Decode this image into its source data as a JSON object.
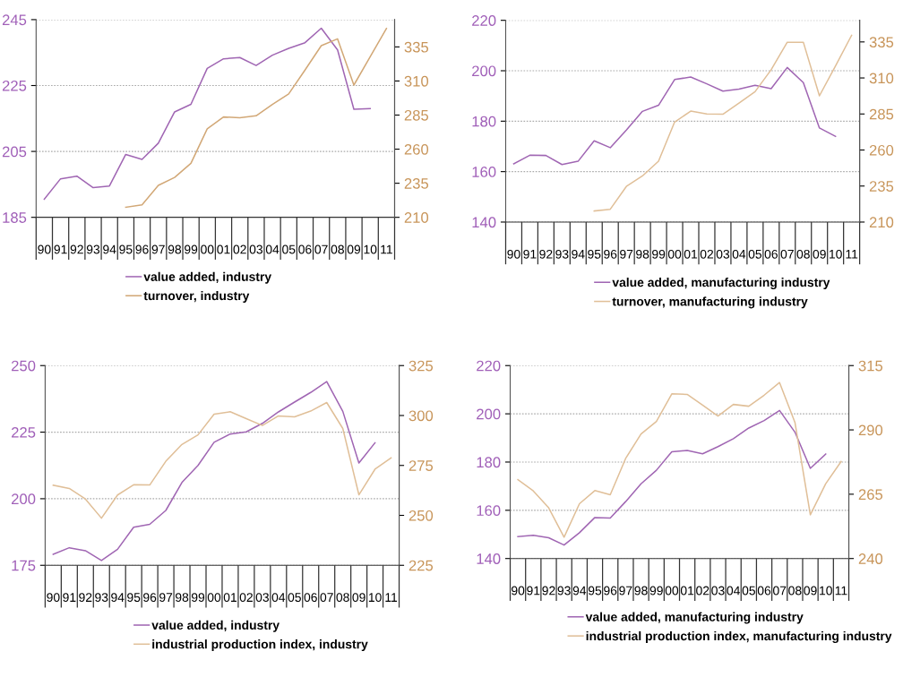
{
  "chart_data": [
    {
      "type": "line",
      "categories": [
        "90",
        "91",
        "92",
        "93",
        "94",
        "95",
        "96",
        "97",
        "98",
        "99",
        "00",
        "01",
        "02",
        "03",
        "04",
        "05",
        "06",
        "07",
        "08",
        "09",
        "10",
        "11"
      ],
      "ylim": [
        185,
        245
      ],
      "yticks": [
        185,
        205,
        225,
        245
      ],
      "y2lim": [
        210,
        355
      ],
      "y2ticks": [
        210,
        235,
        260,
        285,
        310,
        335
      ],
      "grid": "y",
      "legend": "bottom",
      "series": [
        {
          "name": "value added, industry",
          "color": "#a066b3",
          "values": [
            190.5,
            196.7,
            197.5,
            194.0,
            194.5,
            204.1,
            202.6,
            207.5,
            217.0,
            219.3,
            230.2,
            233.1,
            233.5,
            231.1,
            234.2,
            236.3,
            238.0,
            242.4,
            235.8,
            217.8,
            218.0,
            null
          ]
        },
        {
          "name": "turnover, industry",
          "color": "#d2a877",
          "axis": "y2",
          "values": [
            null,
            null,
            null,
            null,
            null,
            217.4,
            219.2,
            233.4,
            239.3,
            249.6,
            274.9,
            283.6,
            283.0,
            284.5,
            292.8,
            300.5,
            318.0,
            335.9,
            340.9,
            307.0,
            327.8,
            348.5
          ]
        }
      ]
    },
    {
      "type": "line",
      "categories": [
        "90",
        "91",
        "92",
        "93",
        "94",
        "95",
        "96",
        "97",
        "98",
        "99",
        "00",
        "01",
        "02",
        "03",
        "04",
        "05",
        "06",
        "07",
        "08",
        "09",
        "10",
        "11"
      ],
      "ylim": [
        140,
        220
      ],
      "yticks": [
        140,
        160,
        180,
        200,
        220
      ],
      "y2lim": [
        210,
        350
      ],
      "y2ticks": [
        210,
        235,
        260,
        285,
        310,
        335
      ],
      "grid": "y",
      "legend": "bottom",
      "series": [
        {
          "name": "value added, manufacturing industry",
          "color": "#a066b3",
          "values": [
            163.1,
            166.5,
            166.4,
            162.8,
            164.1,
            172.2,
            169.5,
            176.5,
            183.9,
            186.3,
            196.5,
            197.5,
            194.8,
            191.9,
            192.7,
            194.2,
            192.9,
            201.3,
            195.3,
            177.3,
            174.0,
            null
          ]
        },
        {
          "name": "turnover, manufacturing industry",
          "color": "#e0bf98",
          "axis": "y2",
          "values": [
            null,
            null,
            null,
            null,
            null,
            217.7,
            218.9,
            234.7,
            242.0,
            252.2,
            279.4,
            287.0,
            285.0,
            284.8,
            292.6,
            300.5,
            315.7,
            334.8,
            334.8,
            297.6,
            318.4,
            339.6
          ]
        }
      ]
    },
    {
      "type": "line",
      "categories": [
        "90",
        "91",
        "92",
        "93",
        "94",
        "95",
        "96",
        "97",
        "98",
        "99",
        "00",
        "01",
        "02",
        "03",
        "04",
        "05",
        "06",
        "07",
        "08",
        "09",
        "10",
        "11"
      ],
      "ylim": [
        175,
        250
      ],
      "yticks": [
        175,
        200,
        225,
        250
      ],
      "y2lim": [
        225,
        325
      ],
      "y2ticks": [
        225,
        250,
        275,
        300,
        325
      ],
      "grid": "y",
      "legend": "bottom",
      "series": [
        {
          "name": "value added, industry",
          "color": "#a066b3",
          "values": [
            179.1,
            181.6,
            180.5,
            176.8,
            181.0,
            189.3,
            190.4,
            195.6,
            206.1,
            212.5,
            221.2,
            224.3,
            225.1,
            228.3,
            232.6,
            236.3,
            239.9,
            244.0,
            232.8,
            213.4,
            221.0,
            null
          ]
        },
        {
          "name": "industrial production index, industry",
          "color": "#e0bf98",
          "axis": "y2",
          "values": [
            265.1,
            263.5,
            258.2,
            248.6,
            260.2,
            265.3,
            265.2,
            277.1,
            285.5,
            290.3,
            300.7,
            301.9,
            298.4,
            295.0,
            299.8,
            299.3,
            302.2,
            306.5,
            293.5,
            260.3,
            273.1,
            278.8
          ]
        }
      ]
    },
    {
      "type": "line",
      "categories": [
        "90",
        "91",
        "92",
        "93",
        "94",
        "95",
        "96",
        "97",
        "98",
        "99",
        "00",
        "01",
        "02",
        "03",
        "04",
        "05",
        "06",
        "07",
        "08",
        "09",
        "10",
        "11"
      ],
      "ylim": [
        140,
        220
      ],
      "yticks": [
        140,
        160,
        180,
        200,
        220
      ],
      "y2lim": [
        240,
        315
      ],
      "y2ticks": [
        240,
        265,
        290,
        315
      ],
      "grid": "y",
      "legend": "bottom",
      "series": [
        {
          "name": "value added, manufacturing industry",
          "color": "#a066b3",
          "values": [
            149.1,
            149.6,
            148.6,
            145.6,
            150.7,
            157.0,
            156.8,
            163.6,
            171.0,
            176.6,
            184.3,
            184.8,
            183.4,
            186.4,
            189.7,
            194.1,
            197.2,
            201.4,
            192.4,
            177.4,
            183.3,
            null
          ]
        },
        {
          "name": "industrial production index, manufacturing industry",
          "color": "#e0bf98",
          "axis": "y2",
          "values": [
            270.7,
            266.3,
            259.7,
            248.3,
            261.3,
            266.4,
            264.8,
            278.9,
            288.4,
            293.3,
            304.0,
            303.8,
            299.6,
            295.4,
            299.9,
            299.2,
            303.5,
            308.4,
            292.9,
            257.0,
            269.1,
            277.7
          ]
        }
      ]
    }
  ]
}
